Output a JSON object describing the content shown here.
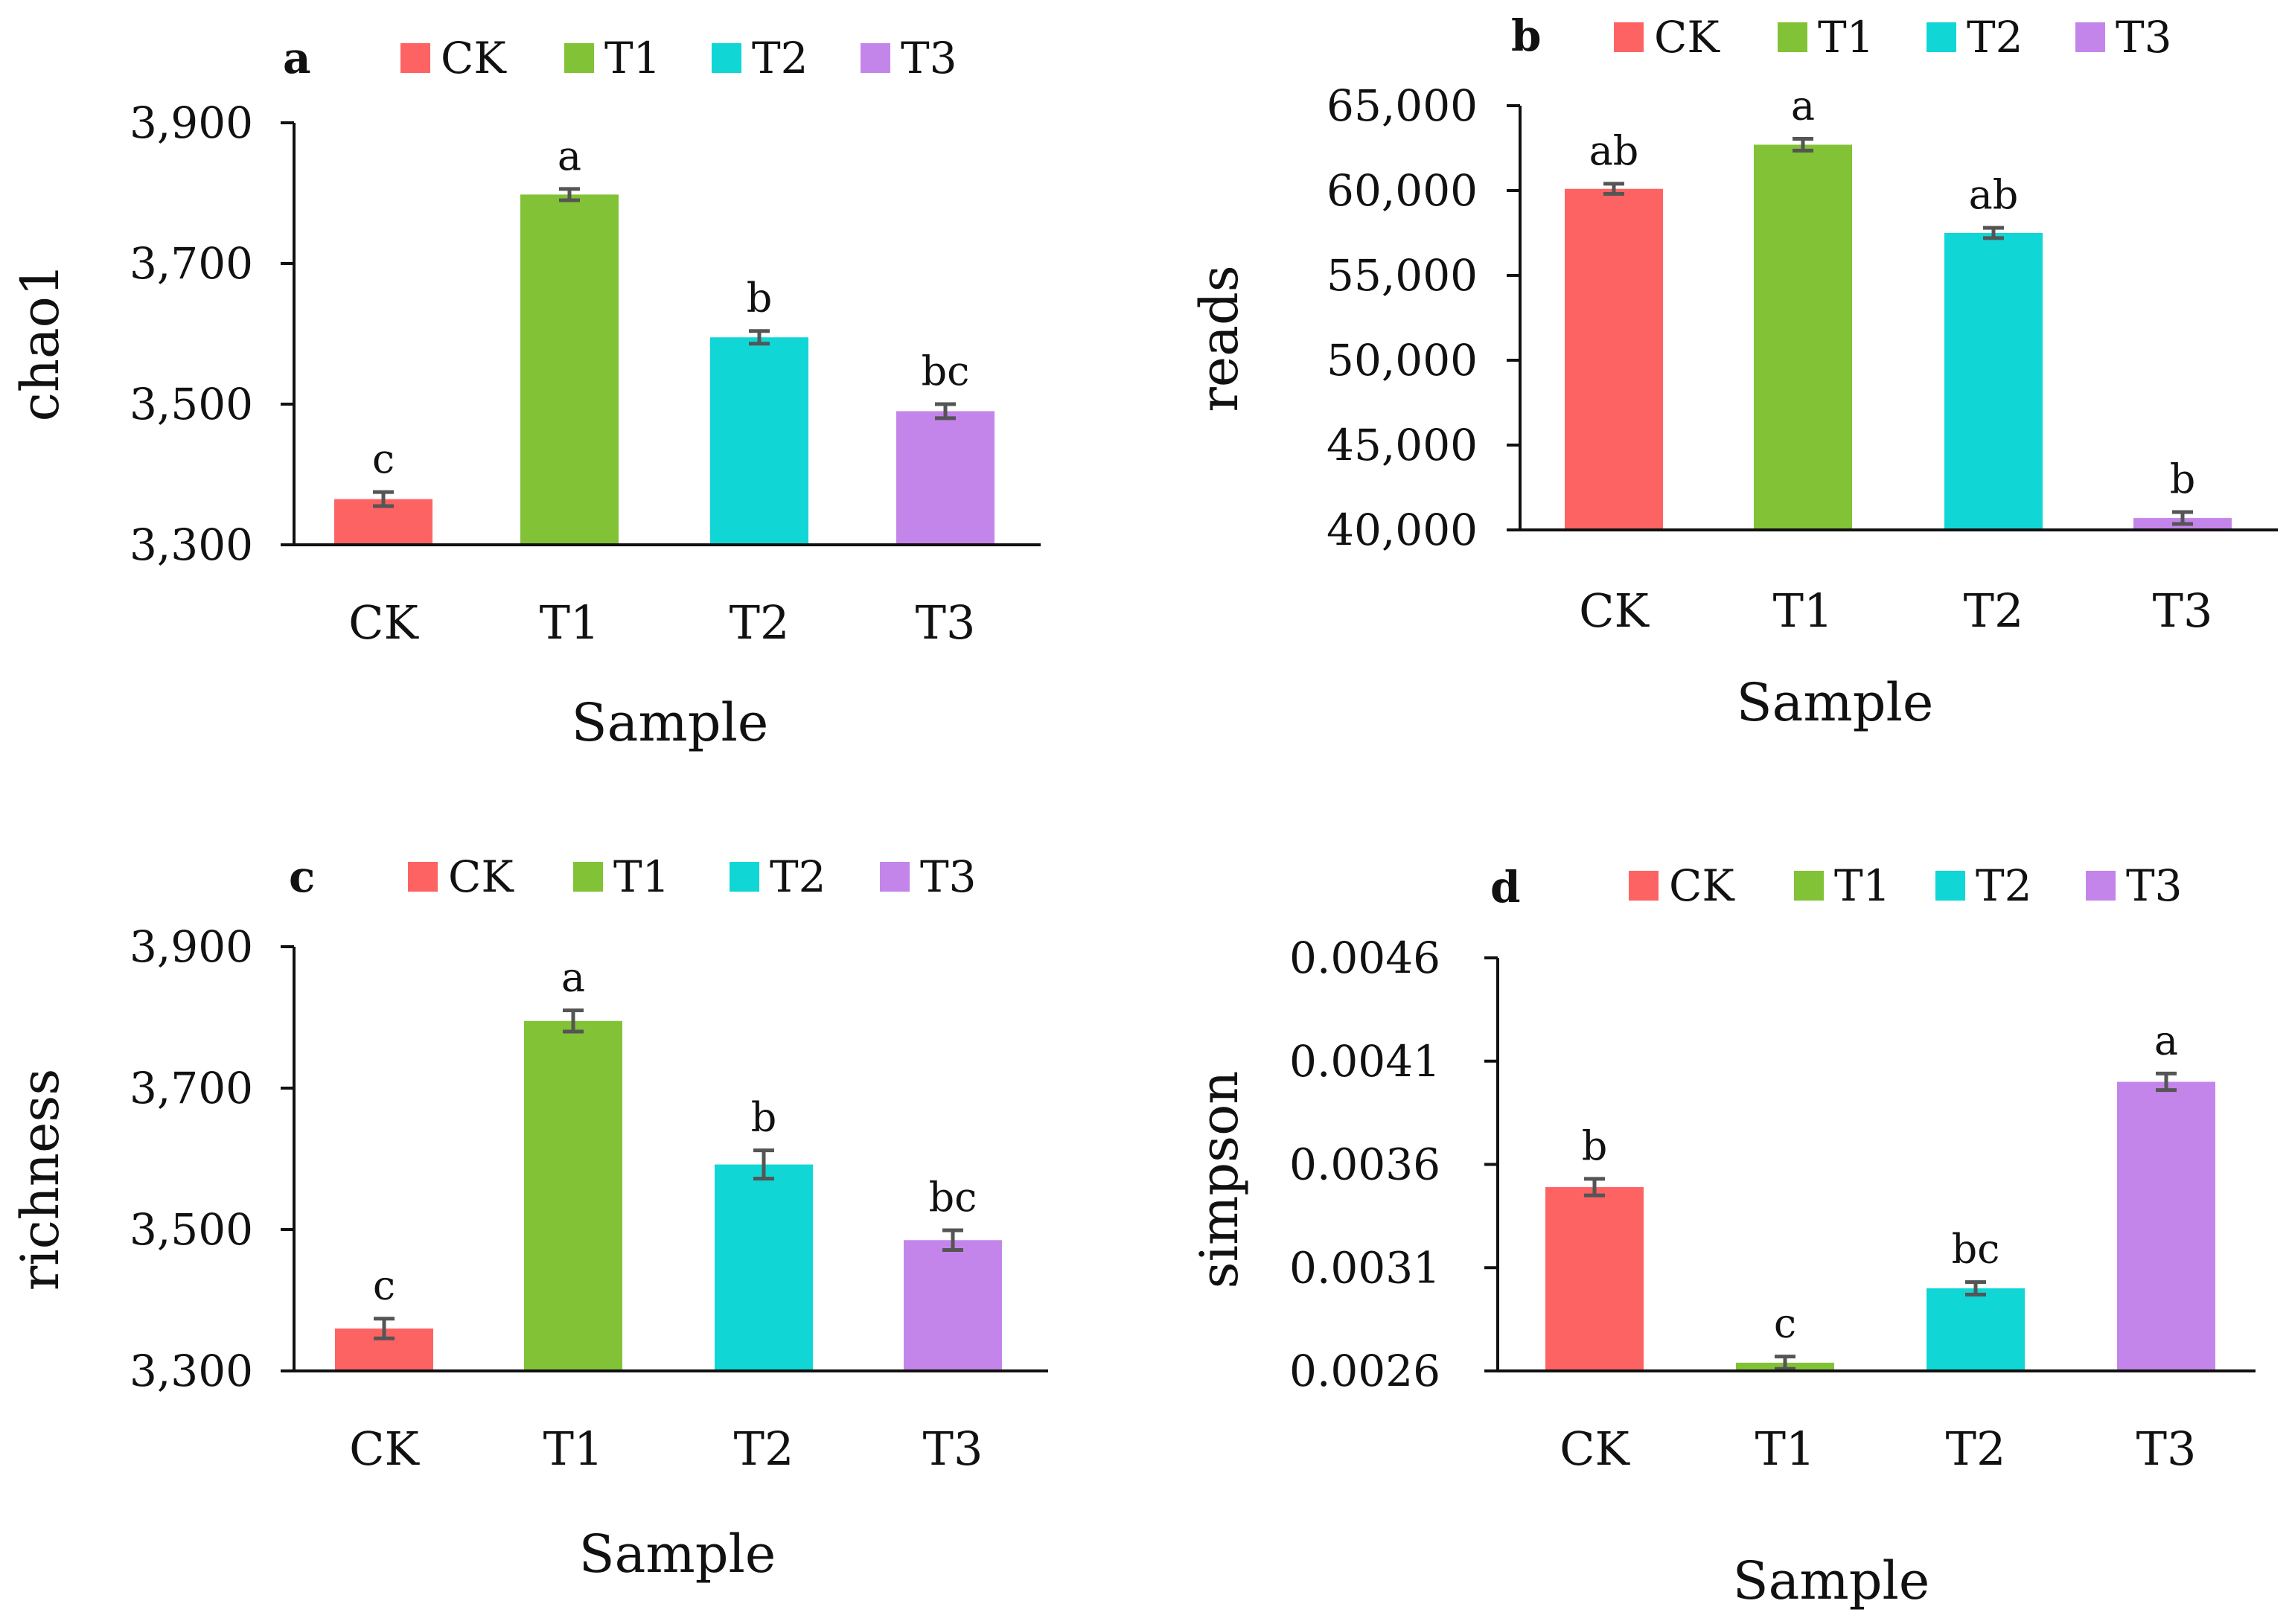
{
  "colors": {
    "CK": "#fe6364",
    "T1": "#82c236",
    "T2": "#10d7d6",
    "T3": "#c485eb",
    "axis": "#111111",
    "errorbar": "#555555"
  },
  "chart_data": [
    {
      "panel": "a",
      "type": "bar",
      "categories": [
        "CK",
        "T1",
        "T2",
        "T3"
      ],
      "values": [
        3365,
        3798,
        3595,
        3490
      ],
      "errors": [
        10,
        8,
        9,
        10
      ],
      "significance": [
        "c",
        "a",
        "b",
        "bc"
      ],
      "legend": [
        "CK",
        "T1",
        "T2",
        "T3"
      ],
      "xlabel": "Sample",
      "ylabel": "chao1",
      "ylim": [
        3300,
        3900
      ],
      "yticks": [
        3300,
        3500,
        3700,
        3900
      ],
      "ytick_labels": [
        "3,300",
        "3,500",
        "3,700",
        "3,900"
      ]
    },
    {
      "panel": "b",
      "type": "bar",
      "categories": [
        "CK",
        "T1",
        "T2",
        "T3"
      ],
      "values": [
        60100,
        62700,
        57500,
        40700
      ],
      "errors": [
        300,
        350,
        300,
        350
      ],
      "significance": [
        "ab",
        "a",
        "ab",
        "b"
      ],
      "legend": [
        "CK",
        "T1",
        "T2",
        "T3"
      ],
      "xlabel": "Sample",
      "ylabel": "reads",
      "ylim": [
        40000,
        65000
      ],
      "yticks": [
        40000,
        45000,
        50000,
        55000,
        60000,
        65000
      ],
      "ytick_labels": [
        "40,000",
        "45,000",
        "50,000",
        "55,000",
        "60,000",
        "65,000"
      ]
    },
    {
      "panel": "c",
      "type": "bar",
      "categories": [
        "CK",
        "T1",
        "T2",
        "T3"
      ],
      "values": [
        3360,
        3795,
        3592,
        3485
      ],
      "errors": [
        14,
        15,
        20,
        14
      ],
      "significance": [
        "c",
        "a",
        "b",
        "bc"
      ],
      "legend": [
        "CK",
        "T1",
        "T2",
        "T3"
      ],
      "xlabel": "Sample",
      "ylabel": "richness",
      "ylim": [
        3300,
        3900
      ],
      "yticks": [
        3300,
        3500,
        3700,
        3900
      ],
      "ytick_labels": [
        "3,300",
        "3,500",
        "3,700",
        "3,900"
      ]
    },
    {
      "panel": "d",
      "type": "bar",
      "categories": [
        "CK",
        "T1",
        "T2",
        "T3"
      ],
      "values": [
        0.00349,
        0.00264,
        0.003,
        0.004
      ],
      "errors": [
        4e-05,
        3e-05,
        3e-05,
        4e-05
      ],
      "significance": [
        "b",
        "c",
        "bc",
        "a"
      ],
      "legend": [
        "CK",
        "T1",
        "T2",
        "T3"
      ],
      "xlabel": "Sample",
      "ylabel": "simpson",
      "ylim": [
        0.0026,
        0.0046
      ],
      "yticks": [
        0.0026,
        0.0031,
        0.0036,
        0.0041,
        0.0046
      ],
      "ytick_labels": [
        "0.0026",
        "0.0031",
        "0.0036",
        "0.0041",
        "0.0046"
      ]
    }
  ]
}
